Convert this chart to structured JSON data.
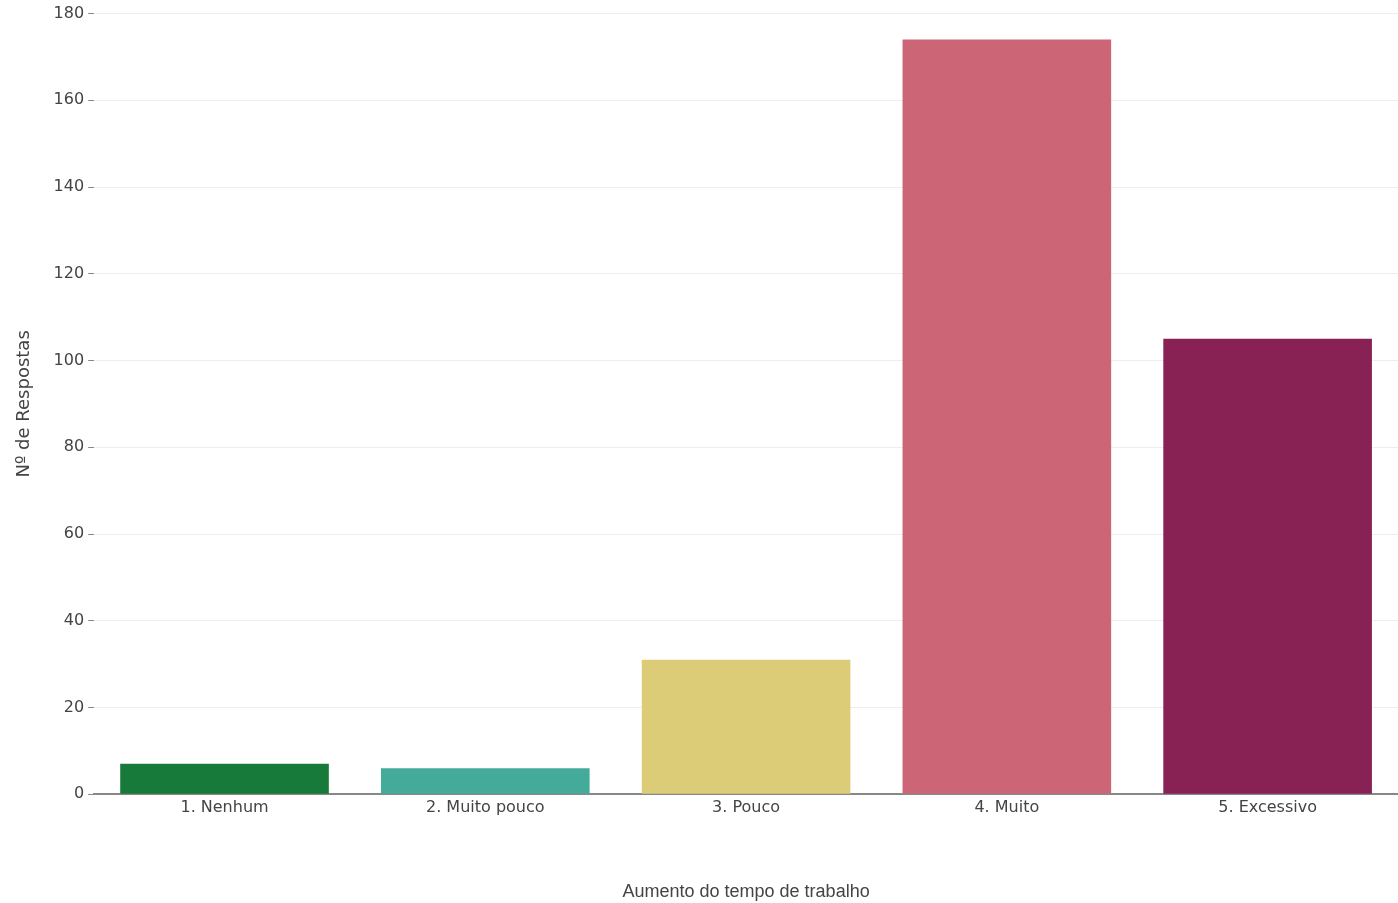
{
  "chart_data": {
    "type": "bar",
    "xlabel": "Aumento do tempo de trabalho",
    "ylabel": "Nº de Respostas",
    "categories": [
      "1. Nenhum",
      "2. Muito pouco",
      "3. Pouco",
      "4. Muito",
      "5. Excessivo"
    ],
    "values": [
      7,
      6,
      31,
      174,
      105
    ],
    "colors": [
      "#177a3a",
      "#44aa99",
      "#ddcc77",
      "#cc6677",
      "#882255"
    ],
    "ylim": [
      0,
      180
    ],
    "yticks": [
      0,
      20,
      40,
      60,
      80,
      100,
      120,
      140,
      160,
      180
    ],
    "grid": "y",
    "legend": false
  }
}
